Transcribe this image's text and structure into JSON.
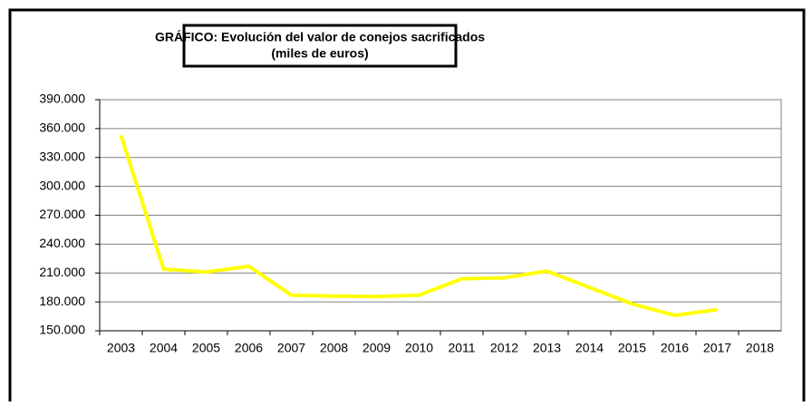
{
  "chart_data": {
    "type": "line",
    "title": [
      "GRÁFICO: Evolución del valor de conejos sacrificados",
      "(miles de euros)"
    ],
    "categories": [
      "2003",
      "2004",
      "2005",
      "2006",
      "2007",
      "2008",
      "2009",
      "2010",
      "2011",
      "2012",
      "2013",
      "2014",
      "2015",
      "2016",
      "2017",
      "2018"
    ],
    "series": [
      {
        "color": "#ffff00",
        "values": [
          353000,
          214000,
          211000,
          217000,
          187000,
          186000,
          185500,
          187000,
          204000,
          205000,
          212000,
          195000,
          178000,
          166000,
          172000,
          null
        ]
      }
    ],
    "ylim": [
      150000,
      390000
    ],
    "yticks": [
      {
        "value": 150000,
        "label": "150.000"
      },
      {
        "value": 180000,
        "label": "180.000"
      },
      {
        "value": 210000,
        "label": "210.000"
      },
      {
        "value": 240000,
        "label": "240.000"
      },
      {
        "value": 270000,
        "label": "270.000"
      },
      {
        "value": 300000,
        "label": "300.000"
      },
      {
        "value": 330000,
        "label": "330.000"
      },
      {
        "value": 360000,
        "label": "360.000"
      },
      {
        "value": 390000,
        "label": "390.000"
      }
    ],
    "grid": true
  }
}
